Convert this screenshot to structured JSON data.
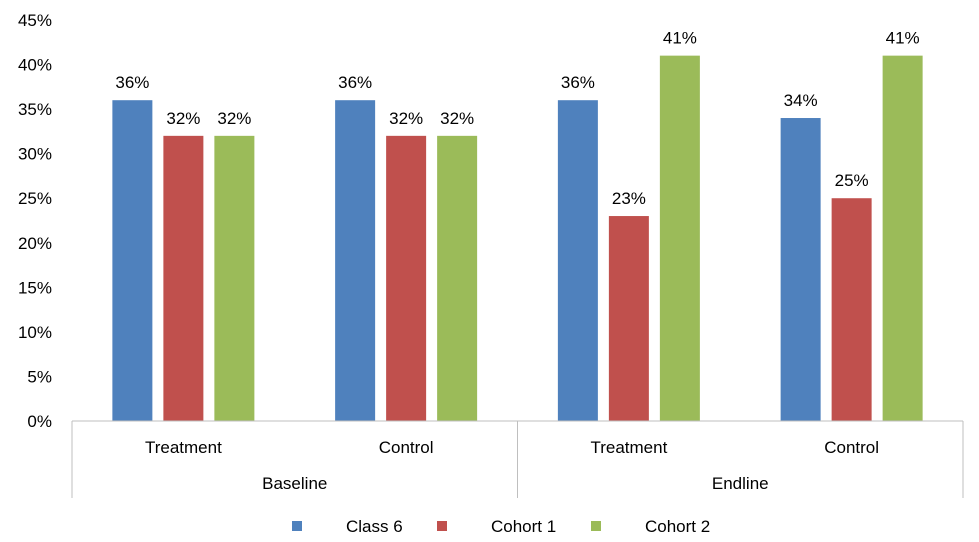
{
  "chart_data": {
    "type": "bar",
    "groups": [
      "Baseline",
      "Endline"
    ],
    "categories": [
      "Treatment",
      "Control",
      "Treatment",
      "Control"
    ],
    "category_groups": [
      0,
      0,
      1,
      1
    ],
    "series": [
      {
        "name": "Class 6",
        "color": "#4F81BD",
        "values": [
          36,
          36,
          36,
          34
        ]
      },
      {
        "name": "Cohort 1",
        "color": "#C0504D",
        "values": [
          32,
          32,
          23,
          25
        ]
      },
      {
        "name": "Cohort 2",
        "color": "#9BBB59",
        "values": [
          32,
          32,
          41,
          41
        ]
      }
    ],
    "value_suffix": "%",
    "ylim": [
      0,
      45
    ],
    "yticks": [
      "0%",
      "5%",
      "10%",
      "15%",
      "20%",
      "25%",
      "30%",
      "35%",
      "40%",
      "45%"
    ],
    "ytick_values": [
      0,
      5,
      10,
      15,
      20,
      25,
      30,
      35,
      40,
      45
    ],
    "grid": false,
    "legend": "bottom"
  }
}
